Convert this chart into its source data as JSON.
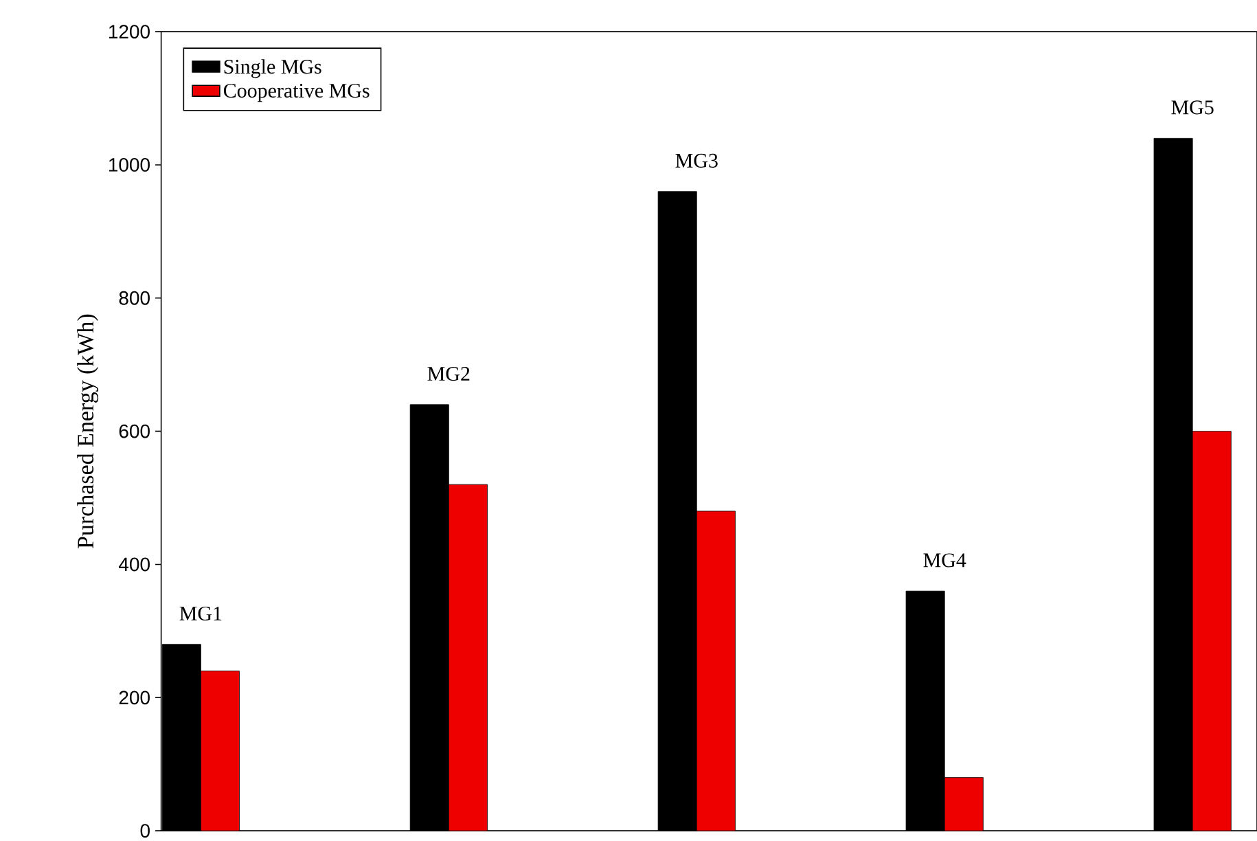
{
  "chart_data": {
    "type": "bar",
    "ylabel": "Purchased Energy (kWh)",
    "categories": [
      "MG1",
      "MG2",
      "MG3",
      "MG4",
      "MG5"
    ],
    "series": [
      {
        "name": "Single MGs",
        "color": "#000000",
        "values": [
          280,
          640,
          960,
          360,
          1040
        ]
      },
      {
        "name": "Cooperative MGs",
        "color": "#ee0000",
        "values": [
          240,
          520,
          480,
          80,
          600
        ]
      }
    ],
    "ylim": [
      0,
      1200
    ],
    "yticks": [
      0,
      200,
      400,
      600,
      800,
      1000,
      1200
    ],
    "grid": false,
    "legend": "top left"
  }
}
